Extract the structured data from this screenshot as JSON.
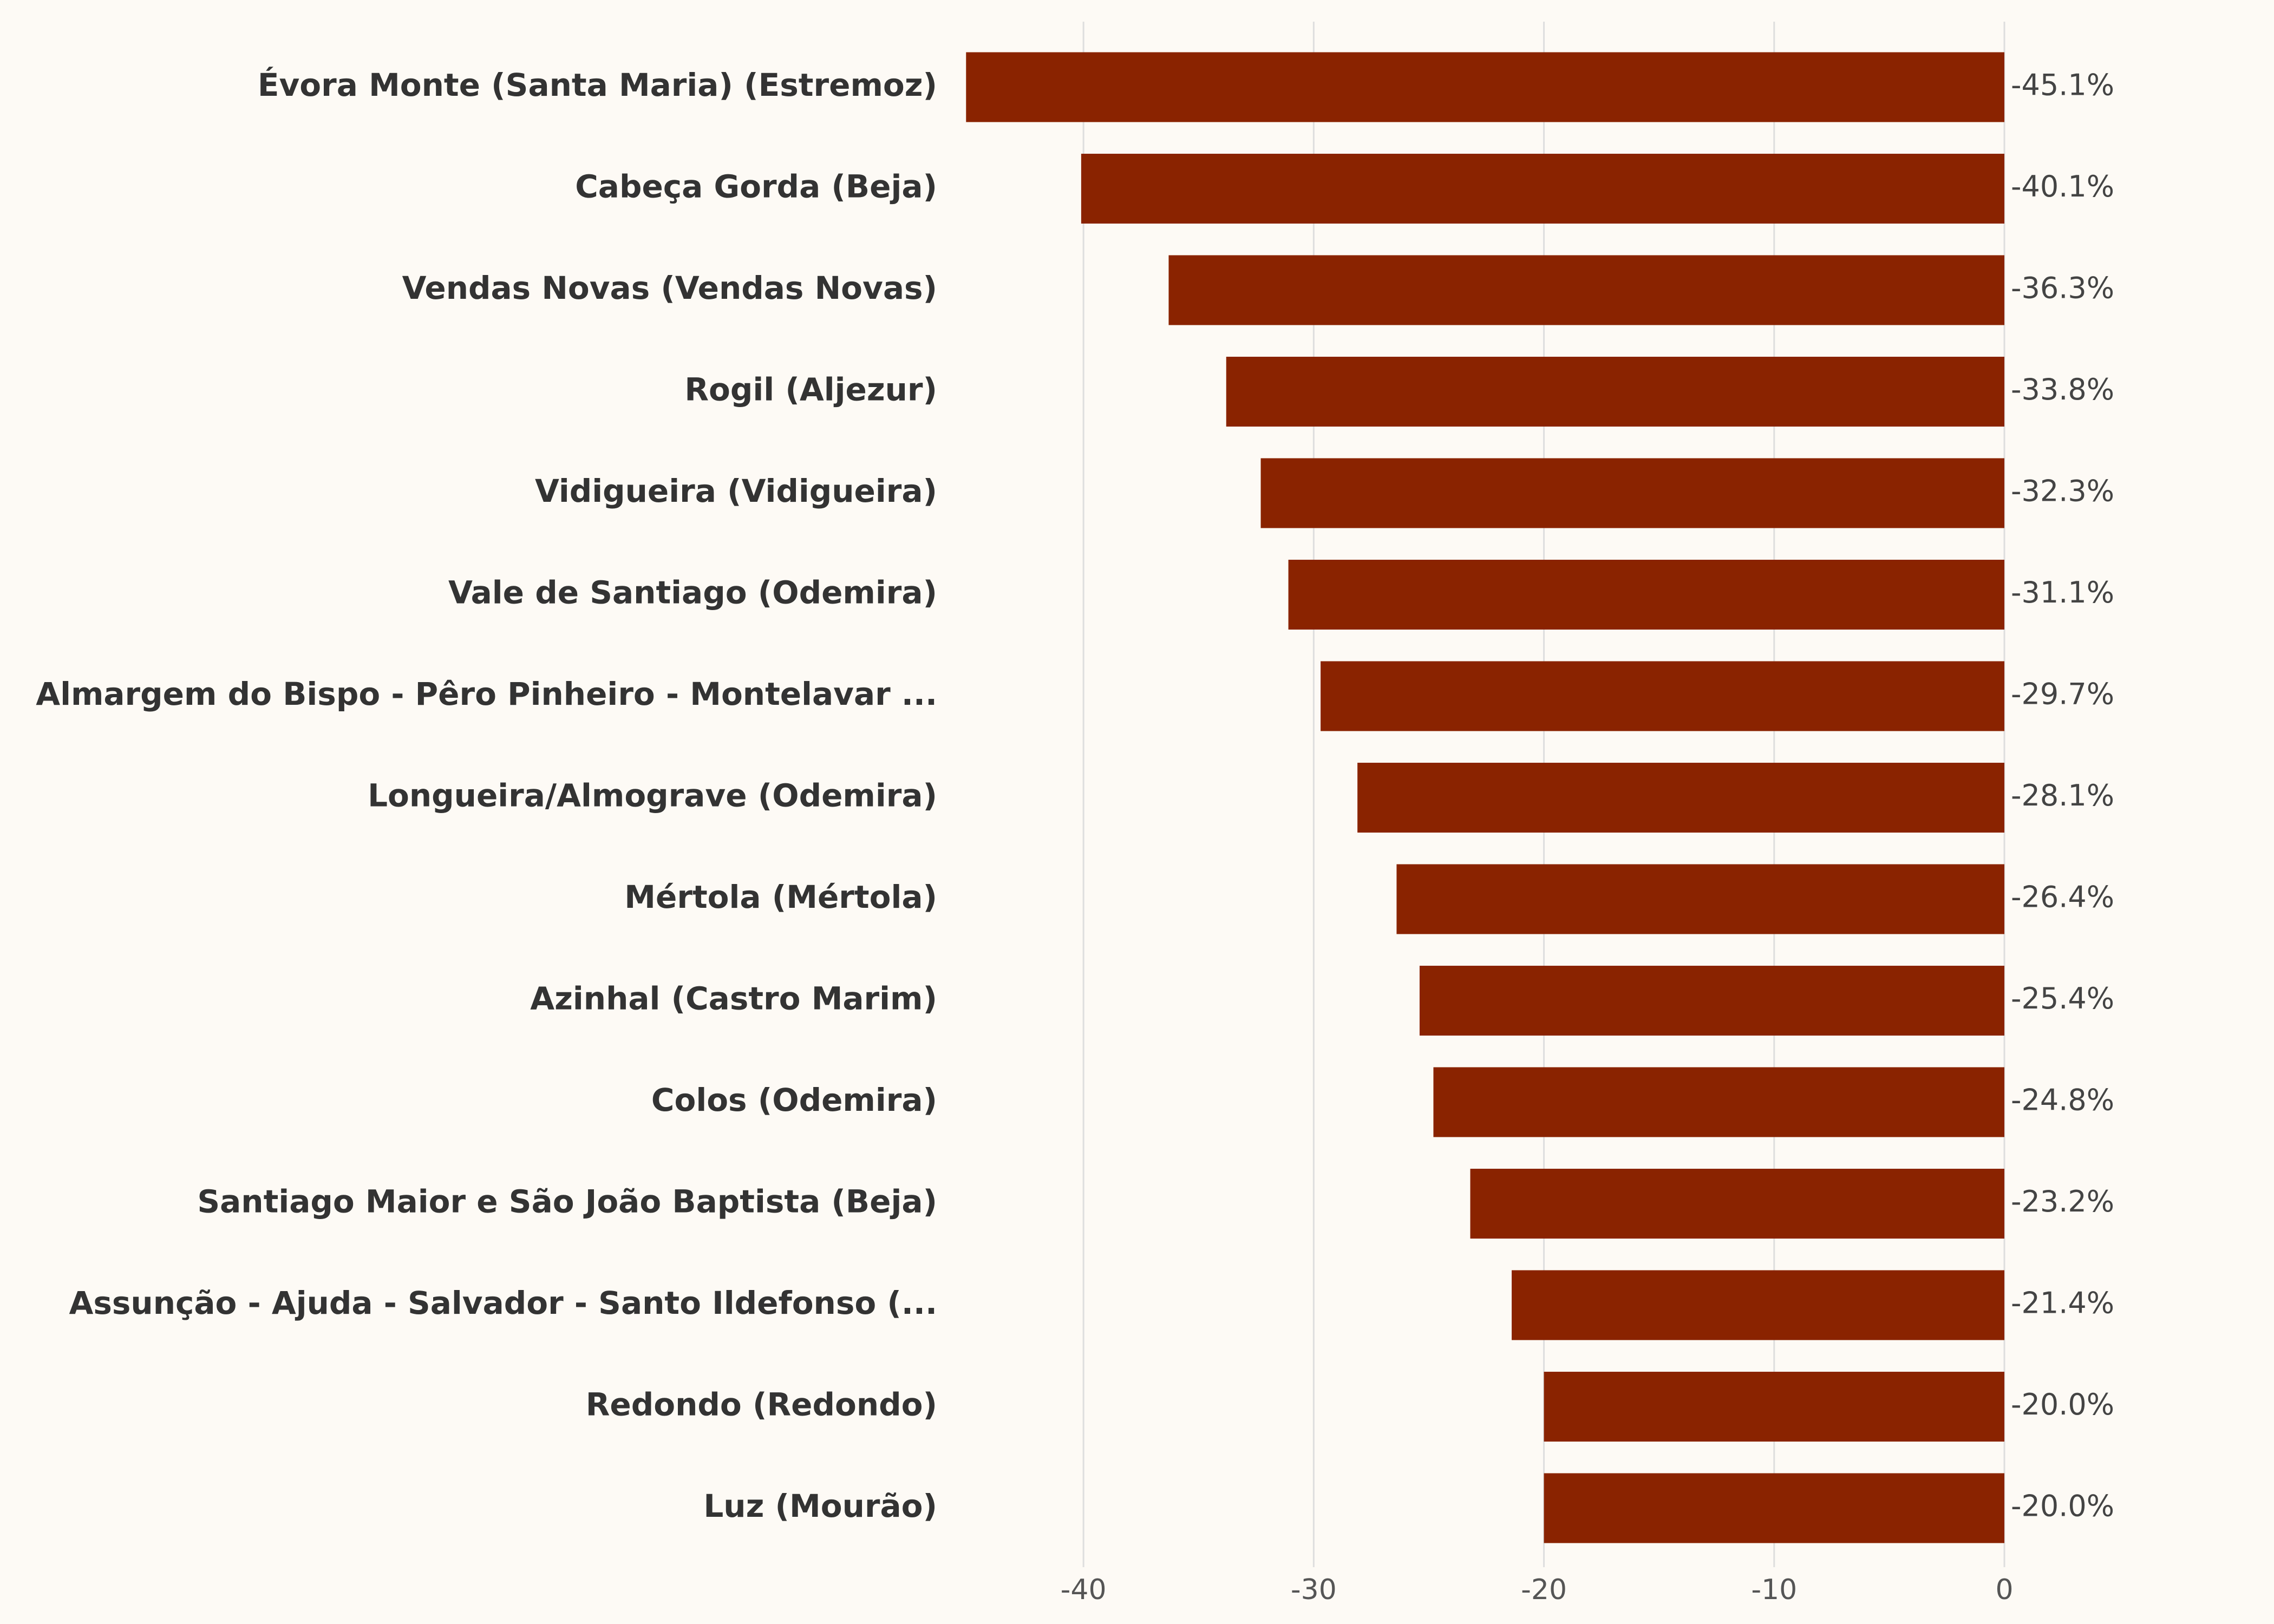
{
  "chart_data": {
    "type": "bar",
    "orientation": "horizontal",
    "categories": [
      "Évora Monte (Santa Maria) (Estremoz)",
      "Cabeça Gorda (Beja)",
      "Vendas Novas (Vendas Novas)",
      "Rogil (Aljezur)",
      "Vidigueira (Vidigueira)",
      "Vale de Santiago (Odemira)",
      "Almargem do Bispo - Pêro Pinheiro - Montelavar ...",
      "Longueira/Almograve (Odemira)",
      "Mértola (Mértola)",
      "Azinhal (Castro Marim)",
      "Colos (Odemira)",
      "Santiago Maior e São João Baptista (Beja)",
      "Assunção - Ajuda - Salvador - Santo Ildefonso (...",
      "Redondo (Redondo)",
      "Luz (Mourão)"
    ],
    "values": [
      -45.1,
      -40.1,
      -36.3,
      -33.8,
      -32.3,
      -31.1,
      -29.7,
      -28.1,
      -26.4,
      -25.4,
      -24.8,
      -23.2,
      -21.4,
      -20.0,
      -20.0
    ],
    "value_labels": [
      "-45.1%",
      "-40.1%",
      "-36.3%",
      "-33.8%",
      "-32.3%",
      "-31.1%",
      "-29.7%",
      "-28.1%",
      "-26.4%",
      "-25.4%",
      "-24.8%",
      "-23.2%",
      "-21.4%",
      "-20.0%",
      "-20.0%"
    ],
    "color": "#8a2300",
    "xlim": [
      -46,
      0
    ],
    "xticks": [
      -40,
      -30,
      -20,
      -10,
      0
    ],
    "grid": true
  }
}
